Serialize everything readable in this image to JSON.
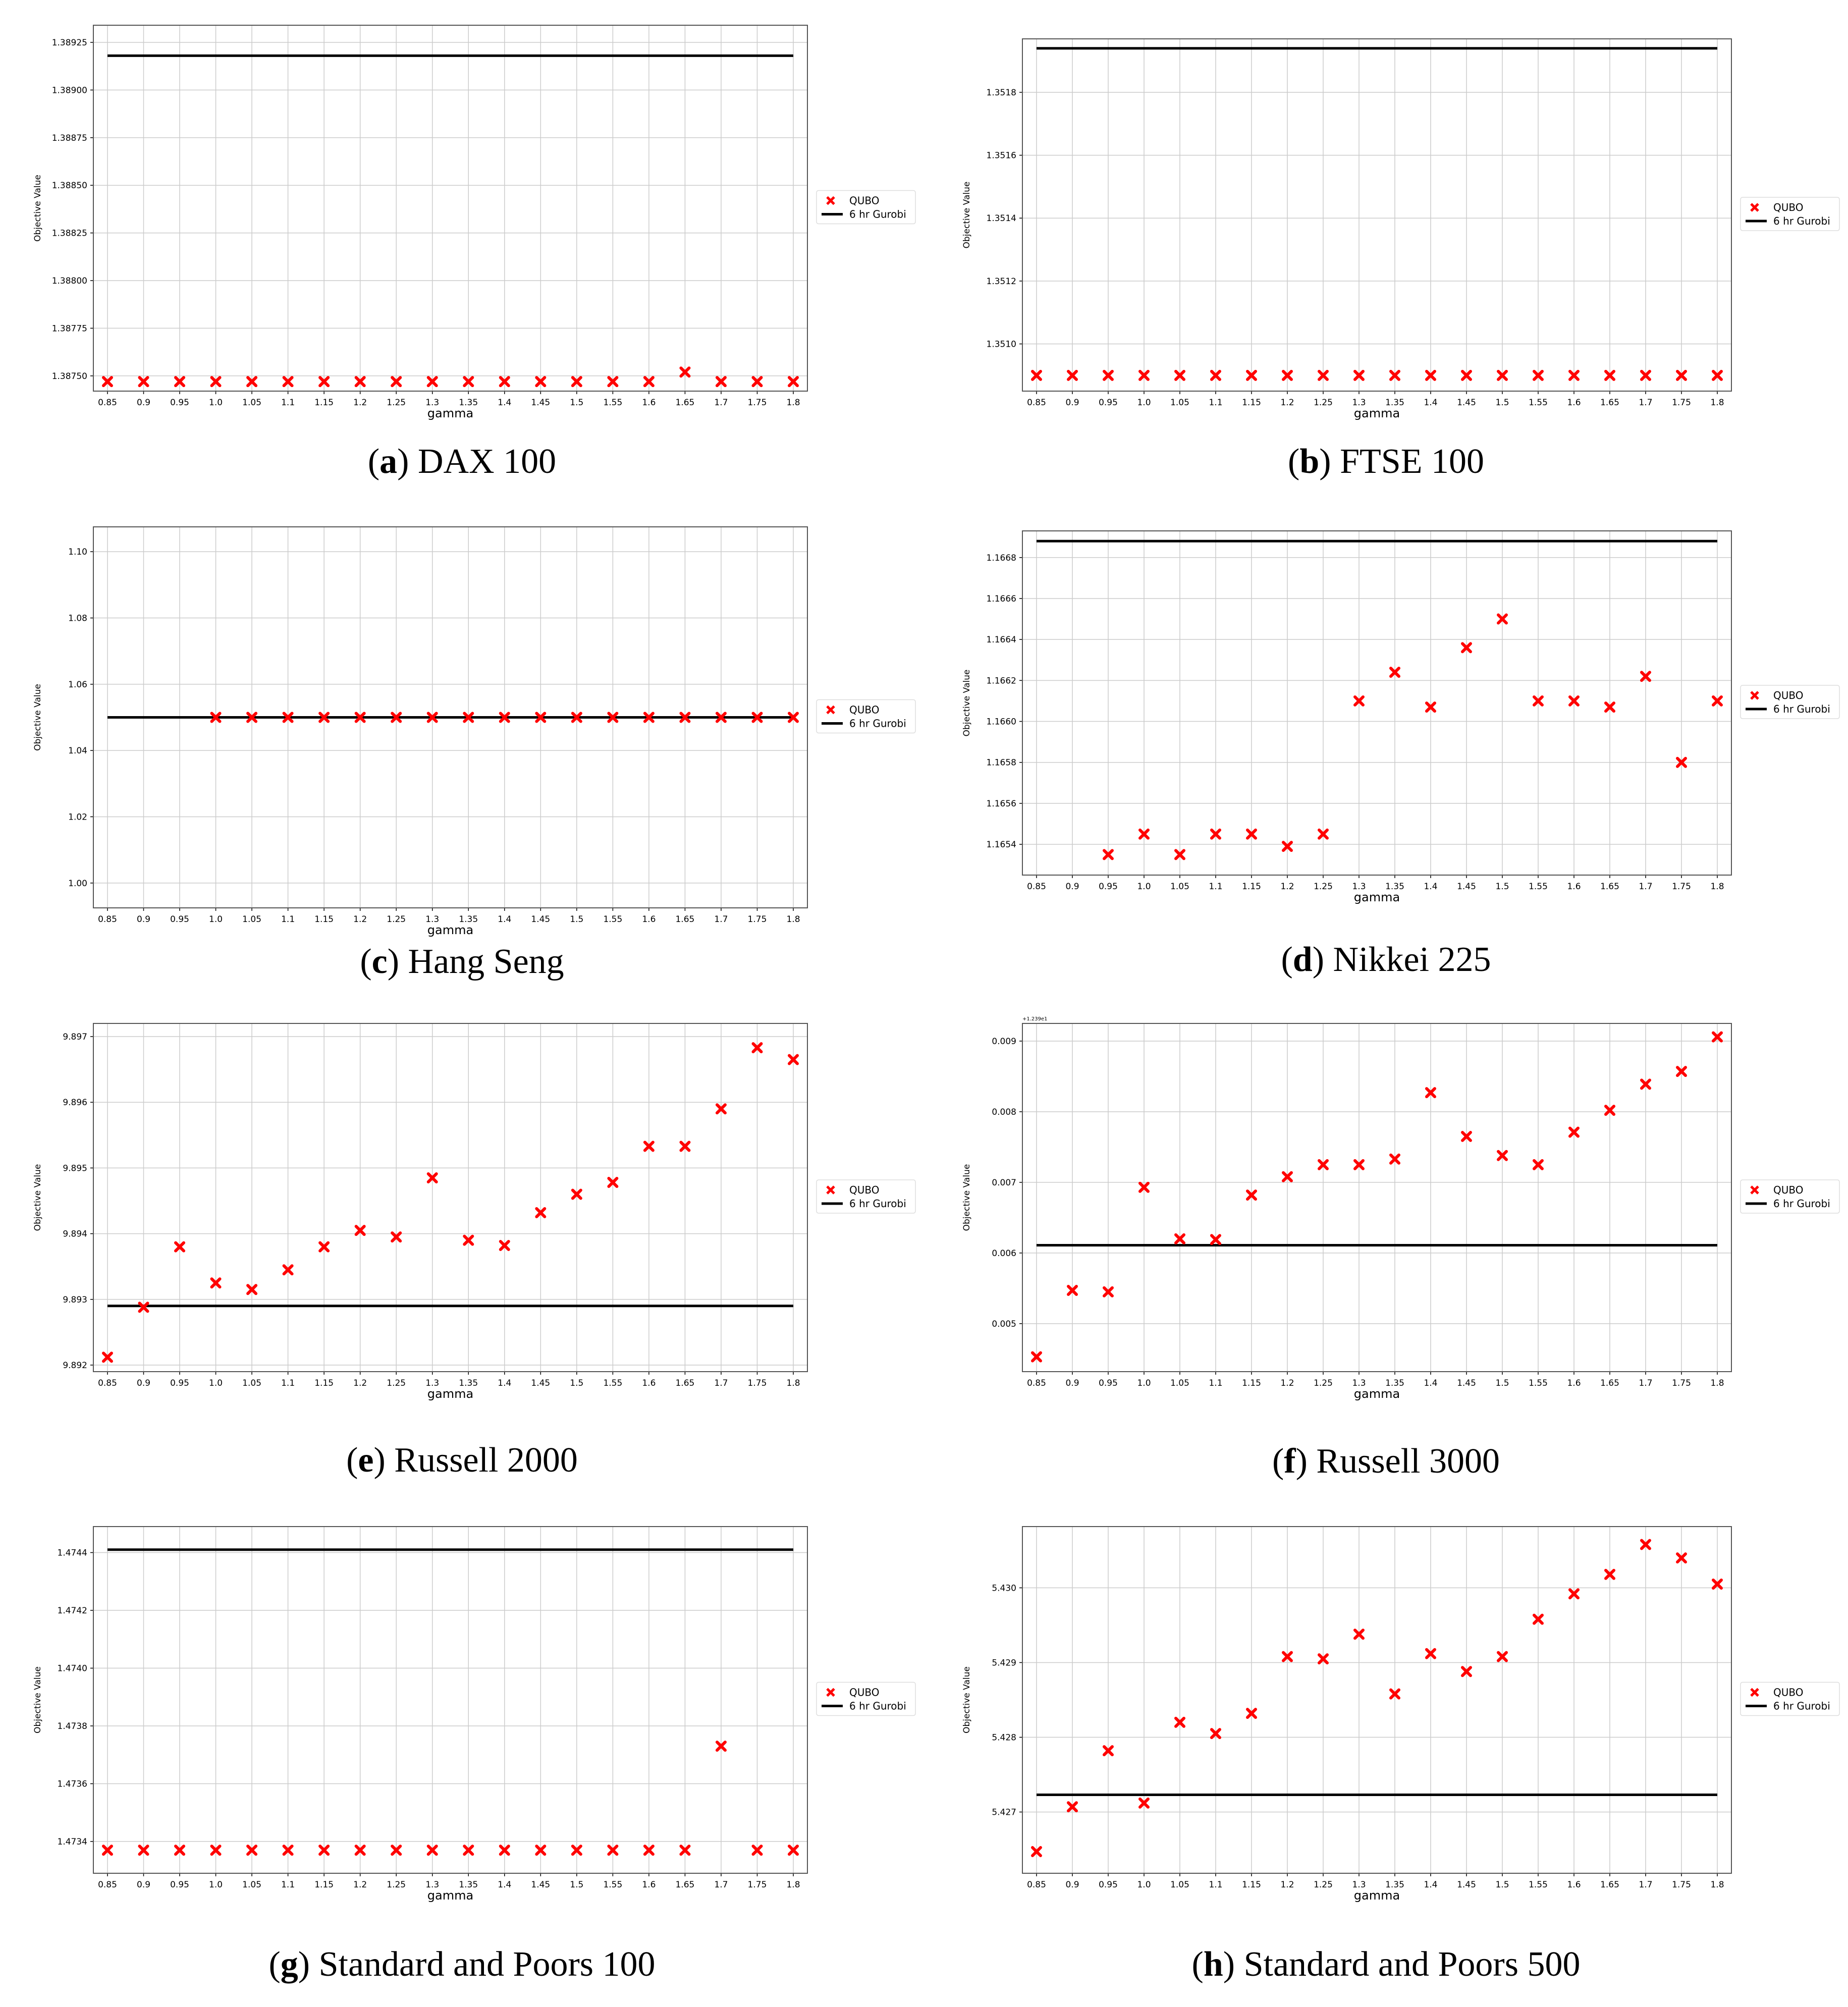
{
  "figure": {
    "legend": {
      "qubo": "QUBO",
      "gurobi": "6 hr Gurobi"
    },
    "colors": {
      "qubo": "#ff0000",
      "gurobi": "#000000",
      "grid": "#cccccc",
      "frame": "#555555"
    }
  },
  "chart_data": [
    {
      "type": "scatter",
      "letter": "a",
      "name": "DAX 100",
      "xlabel": "gamma",
      "ylabel": "Objective Value",
      "categories": [
        "0.85",
        "0.9",
        "0.95",
        "1.0",
        "1.05",
        "1.1",
        "1.15",
        "1.2",
        "1.25",
        "1.3",
        "1.35",
        "1.4",
        "1.45",
        "1.5",
        "1.55",
        "1.6",
        "1.65",
        "1.7",
        "1.75",
        "1.8"
      ],
      "ylim": [
        1.38742,
        1.38934
      ],
      "yticks": [
        "1.38750",
        "1.38775",
        "1.38800",
        "1.38825",
        "1.38850",
        "1.38875",
        "1.38900",
        "1.38925"
      ],
      "series": [
        {
          "name": "QUBO",
          "values": [
            1.38747,
            1.38747,
            1.38747,
            1.38747,
            1.38747,
            1.38747,
            1.38747,
            1.38747,
            1.38747,
            1.38747,
            1.38747,
            1.38747,
            1.38747,
            1.38747,
            1.38747,
            1.38747,
            1.38752,
            1.38747,
            1.38747,
            1.38747
          ]
        },
        {
          "name": "6 hr Gurobi",
          "value": 1.38918
        }
      ]
    },
    {
      "type": "scatter",
      "letter": "b",
      "name": "FTSE 100",
      "xlabel": "gamma",
      "ylabel": "Objective Value",
      "categories": [
        "0.85",
        "0.9",
        "0.95",
        "1.0",
        "1.05",
        "1.1",
        "1.15",
        "1.2",
        "1.25",
        "1.3",
        "1.35",
        "1.4",
        "1.45",
        "1.5",
        "1.55",
        "1.6",
        "1.65",
        "1.7",
        "1.75",
        "1.8"
      ],
      "ylim": [
        1.35085,
        1.35197
      ],
      "yticks": [
        "1.3510",
        "1.3512",
        "1.3514",
        "1.3516",
        "1.3518"
      ],
      "series": [
        {
          "name": "QUBO",
          "values": [
            1.3509,
            1.3509,
            1.3509,
            1.3509,
            1.3509,
            1.3509,
            1.3509,
            1.3509,
            1.3509,
            1.3509,
            1.3509,
            1.3509,
            1.3509,
            1.3509,
            1.3509,
            1.3509,
            1.3509,
            1.3509,
            1.3509,
            1.3509
          ]
        },
        {
          "name": "6 hr Gurobi",
          "value": 1.35194
        }
      ]
    },
    {
      "type": "scatter",
      "letter": "c",
      "name": "Hang Seng",
      "xlabel": "gamma",
      "ylabel": "Objective Value",
      "categories": [
        "0.85",
        "0.9",
        "0.95",
        "1.0",
        "1.05",
        "1.1",
        "1.15",
        "1.2",
        "1.25",
        "1.3",
        "1.35",
        "1.4",
        "1.45",
        "1.5",
        "1.55",
        "1.6",
        "1.65",
        "1.7",
        "1.75",
        "1.8"
      ],
      "ylim": [
        0.9925,
        1.1075
      ],
      "yticks": [
        "1.00",
        "1.02",
        "1.04",
        "1.06",
        "1.08",
        "1.10"
      ],
      "series": [
        {
          "name": "QUBO",
          "values": [
            null,
            null,
            null,
            1.05,
            1.05,
            1.05,
            1.05,
            1.05,
            1.05,
            1.05,
            1.05,
            1.05,
            1.05,
            1.05,
            1.05,
            1.05,
            1.05,
            1.05,
            1.05,
            1.05
          ]
        },
        {
          "name": "6 hr Gurobi",
          "value": 1.05
        }
      ]
    },
    {
      "type": "scatter",
      "letter": "d",
      "name": "Nikkei 225",
      "xlabel": "gamma",
      "ylabel": "Objective Value",
      "categories": [
        "0.85",
        "0.9",
        "0.95",
        "1.0",
        "1.05",
        "1.1",
        "1.15",
        "1.2",
        "1.25",
        "1.3",
        "1.35",
        "1.4",
        "1.45",
        "1.5",
        "1.55",
        "1.6",
        "1.65",
        "1.7",
        "1.75",
        "1.8"
      ],
      "ylim": [
        1.16525,
        1.16693
      ],
      "yticks": [
        "1.1654",
        "1.1656",
        "1.1658",
        "1.1660",
        "1.1662",
        "1.1664",
        "1.1666",
        "1.1668"
      ],
      "series": [
        {
          "name": "QUBO",
          "values": [
            null,
            null,
            1.16535,
            1.16545,
            1.16535,
            1.16545,
            1.16545,
            1.16539,
            1.16545,
            1.1661,
            1.16624,
            1.16607,
            1.16636,
            1.1665,
            1.1661,
            1.1661,
            1.16607,
            1.16622,
            1.1658,
            1.1661
          ]
        },
        {
          "name": "6 hr Gurobi",
          "value": 1.16688
        }
      ]
    },
    {
      "type": "scatter",
      "letter": "e",
      "name": "Russell 2000",
      "xlabel": "gamma",
      "ylabel": "Objective Value",
      "categories": [
        "0.85",
        "0.9",
        "0.95",
        "1.0",
        "1.05",
        "1.1",
        "1.15",
        "1.2",
        "1.25",
        "1.3",
        "1.35",
        "1.4",
        "1.45",
        "1.5",
        "1.55",
        "1.6",
        "1.65",
        "1.7",
        "1.75",
        "1.8"
      ],
      "ylim": [
        9.8919,
        9.8972
      ],
      "yticks": [
        "9.892",
        "9.893",
        "9.894",
        "9.895",
        "9.896",
        "9.897"
      ],
      "series": [
        {
          "name": "QUBO",
          "values": [
            9.89212,
            9.89288,
            9.8938,
            9.89325,
            9.89315,
            9.89345,
            9.8938,
            9.89405,
            9.89395,
            9.89485,
            9.8939,
            9.89382,
            9.89432,
            9.8946,
            9.89478,
            9.89533,
            9.89533,
            9.8959,
            9.89683,
            9.89665
          ]
        },
        {
          "name": "6 hr Gurobi",
          "value": 9.8929
        }
      ]
    },
    {
      "type": "scatter",
      "letter": "f",
      "name": "Russell 3000",
      "xlabel": "gamma",
      "ylabel": "Objective Value",
      "offset_text": "+1.239e1",
      "categories": [
        "0.85",
        "0.9",
        "0.95",
        "1.0",
        "1.05",
        "1.1",
        "1.15",
        "1.2",
        "1.25",
        "1.3",
        "1.35",
        "1.4",
        "1.45",
        "1.5",
        "1.55",
        "1.6",
        "1.65",
        "1.7",
        "1.75",
        "1.8"
      ],
      "ylim": [
        0.00432,
        0.00925
      ],
      "yticks": [
        "0.005",
        "0.006",
        "0.007",
        "0.008",
        "0.009"
      ],
      "series": [
        {
          "name": "QUBO",
          "values": [
            0.00453,
            0.00547,
            0.00545,
            0.00693,
            0.0062,
            0.00619,
            0.00682,
            0.00708,
            0.00725,
            0.00725,
            0.00733,
            0.00827,
            0.00765,
            0.00738,
            0.00725,
            0.00771,
            0.00802,
            0.00839,
            0.00857,
            0.00906
          ]
        },
        {
          "name": "6 hr Gurobi",
          "value": 0.00611
        }
      ]
    },
    {
      "type": "scatter",
      "letter": "g",
      "name": "Standard and Poors 100",
      "xlabel": "gamma",
      "ylabel": "Objective Value",
      "categories": [
        "0.85",
        "0.9",
        "0.95",
        "1.0",
        "1.05",
        "1.1",
        "1.15",
        "1.2",
        "1.25",
        "1.3",
        "1.35",
        "1.4",
        "1.45",
        "1.5",
        "1.55",
        "1.6",
        "1.65",
        "1.7",
        "1.75",
        "1.8"
      ],
      "ylim": [
        1.47329,
        1.47449
      ],
      "yticks": [
        "1.4734",
        "1.4736",
        "1.4738",
        "1.4740",
        "1.4742",
        "1.4744"
      ],
      "series": [
        {
          "name": "QUBO",
          "values": [
            1.47337,
            1.47337,
            1.47337,
            1.47337,
            1.47337,
            1.47337,
            1.47337,
            1.47337,
            1.47337,
            1.47337,
            1.47337,
            1.47337,
            1.47337,
            1.47337,
            1.47337,
            1.47337,
            1.47337,
            1.47373,
            1.47337,
            1.47337
          ]
        },
        {
          "name": "6 hr Gurobi",
          "value": 1.47441
        }
      ]
    },
    {
      "type": "scatter",
      "letter": "h",
      "name": "Standard and Poors 500",
      "xlabel": "gamma",
      "ylabel": "Objective Value",
      "categories": [
        "0.85",
        "0.9",
        "0.95",
        "1.0",
        "1.05",
        "1.1",
        "1.15",
        "1.2",
        "1.25",
        "1.3",
        "1.35",
        "1.4",
        "1.45",
        "1.5",
        "1.55",
        "1.6",
        "1.65",
        "1.7",
        "1.75",
        "1.8"
      ],
      "ylim": [
        5.42618,
        5.43082
      ],
      "yticks": [
        "5.427",
        "5.428",
        "5.429",
        "5.430"
      ],
      "series": [
        {
          "name": "QUBO",
          "values": [
            5.42647,
            5.42707,
            5.42782,
            5.42712,
            5.4282,
            5.42805,
            5.42832,
            5.42908,
            5.42905,
            5.42938,
            5.42858,
            5.42912,
            5.42888,
            5.42908,
            5.42958,
            5.42992,
            5.43018,
            5.43058,
            5.4304,
            5.43005
          ]
        },
        {
          "name": "6 hr Gurobi",
          "value": 5.42723
        }
      ]
    }
  ]
}
